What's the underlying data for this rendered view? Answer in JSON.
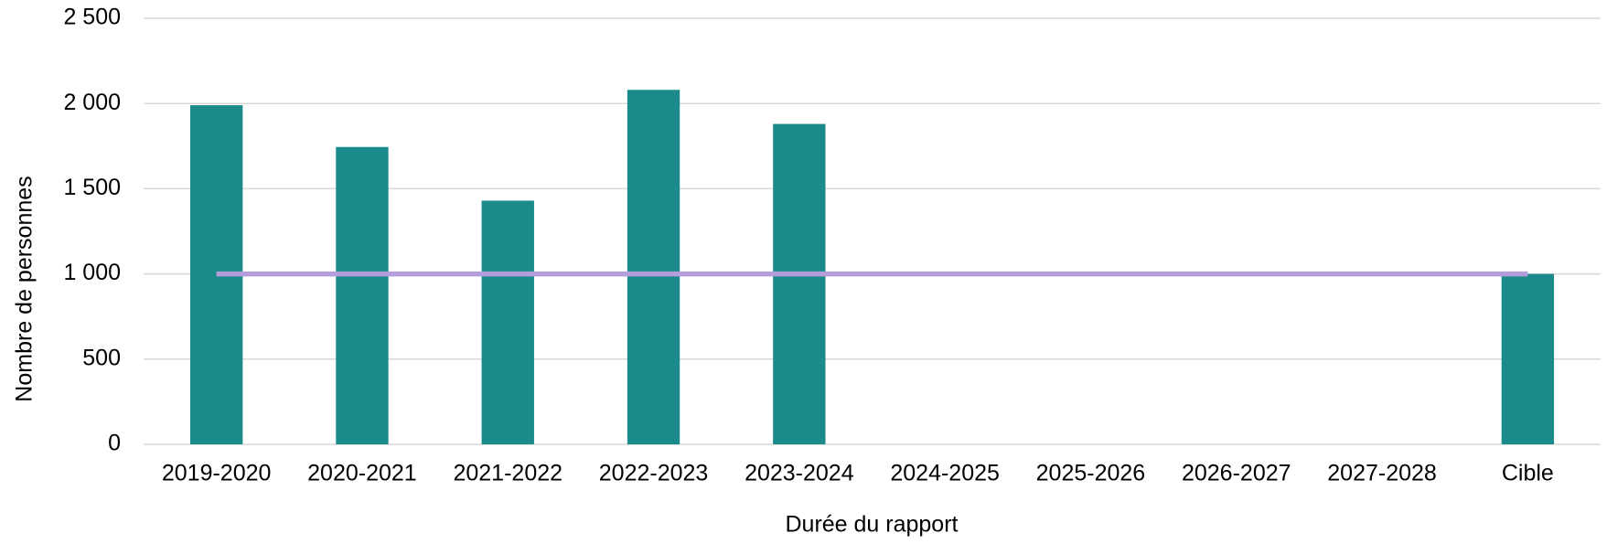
{
  "chart_data": {
    "type": "bar",
    "x_label": "Durée du rapport",
    "y_label": "Nombre de personnes",
    "categories": [
      "2019-2020",
      "2020-2021",
      "2021-2022",
      "2022-2023",
      "2023-2024",
      "2024-2025",
      "2025-2026",
      "2026-2027",
      "2027-2028",
      "Cible"
    ],
    "series": [
      {
        "type": "bar",
        "color": "#1b8a8a",
        "values": [
          1990,
          1745,
          1430,
          2080,
          1880,
          null,
          null,
          null,
          null,
          1000
        ]
      },
      {
        "type": "line",
        "color": "#b39ddb",
        "values": [
          1000,
          1000,
          1000,
          1000,
          1000,
          1000,
          1000,
          1000,
          1000,
          1000
        ]
      }
    ],
    "ylim": [
      0,
      2500
    ],
    "yticks": [
      0,
      500,
      {
        "value": 1000,
        "label": "1 000"
      },
      {
        "value": 1500,
        "label": "1 500"
      },
      {
        "value": 2000,
        "label": "2 000"
      },
      {
        "value": 2500,
        "label": "2 500"
      }
    ],
    "grid": true
  }
}
